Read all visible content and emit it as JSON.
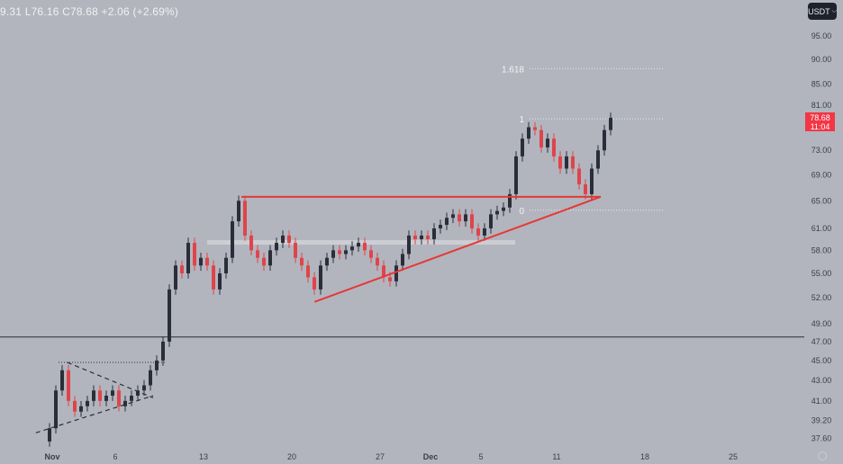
{
  "header": {
    "ohlc_text": "9.31  L76.16  C78.68  +2.06 (+2.69%)"
  },
  "currency_button": {
    "label": "USDT",
    "icon": "chevron-down-icon"
  },
  "last_price": {
    "price": "78.68",
    "countdown": "11:04"
  },
  "colors": {
    "background": "#b2b5be",
    "up": "#2a2e39",
    "down": "#e0444a",
    "trendline": "#e53935",
    "badge": "#f23645"
  },
  "chart_data": {
    "type": "candlestick",
    "y_scale": "log",
    "ylim": [
      36.5,
      99
    ],
    "y_ticks": [
      "95.00",
      "90.00",
      "85.00",
      "81.00",
      "73.00",
      "69.00",
      "65.00",
      "61.00",
      "58.00",
      "55.00",
      "52.00",
      "49.00",
      "47.00",
      "45.00",
      "43.00",
      "41.00",
      "39.20",
      "37.60"
    ],
    "x_ticks": [
      {
        "label": "Nov",
        "day": 0,
        "bold": true
      },
      {
        "label": "6",
        "day": 5
      },
      {
        "label": "13",
        "day": 12
      },
      {
        "label": "20",
        "day": 19
      },
      {
        "label": "27",
        "day": 26
      },
      {
        "label": "Dec",
        "day": 30,
        "bold": true
      },
      {
        "label": "5",
        "day": 34
      },
      {
        "label": "11",
        "day": 40
      },
      {
        "label": "18",
        "day": 47
      },
      {
        "label": "25",
        "day": 54
      }
    ],
    "closes": [
      38.5,
      42,
      44,
      41,
      40,
      40.5,
      41,
      42,
      41,
      41.5,
      42,
      40.5,
      41,
      41.5,
      42,
      42.5,
      44,
      45,
      47,
      53,
      56,
      55,
      59,
      56,
      57,
      56,
      53,
      55,
      57,
      62,
      65,
      60,
      58,
      57,
      56,
      58,
      59,
      60,
      59,
      57,
      56,
      54.5,
      53,
      56,
      57,
      58,
      57.5,
      58,
      58.5,
      59,
      58,
      57,
      56,
      54.5,
      54,
      56,
      57.5,
      60,
      59.5,
      60,
      59.5,
      61,
      61.5,
      62.5,
      63,
      62,
      63,
      61,
      60,
      61,
      63,
      63.5,
      64,
      66,
      72,
      75,
      77,
      76.5,
      73.5,
      75,
      72,
      70,
      72,
      70,
      67.5,
      66,
      70,
      73,
      76.5,
      78.68
    ],
    "horizontal_line": 47.5,
    "resistance": {
      "price": 65.6,
      "from_day": 15,
      "to_day": 43.5
    },
    "support_trendline": {
      "from": {
        "day": 20.8,
        "price": 51.5
      },
      "to": {
        "day": 43.5,
        "price": 65.6
      }
    },
    "fibonacci": [
      {
        "label": "1.618",
        "price": 88.1
      },
      {
        "label": "1",
        "price": 78.5
      },
      {
        "label": "0",
        "price": 63.6
      }
    ],
    "zone_price": 59,
    "triangle": {
      "top": 44.8,
      "upper_from": {
        "day": 1.2,
        "price": 44.8
      },
      "upper_to": {
        "day": 8,
        "price": 41.3
      },
      "lower_from": {
        "day": -1.3,
        "price": 38.1
      },
      "lower_to": {
        "day": 8,
        "price": 41.5
      }
    }
  }
}
